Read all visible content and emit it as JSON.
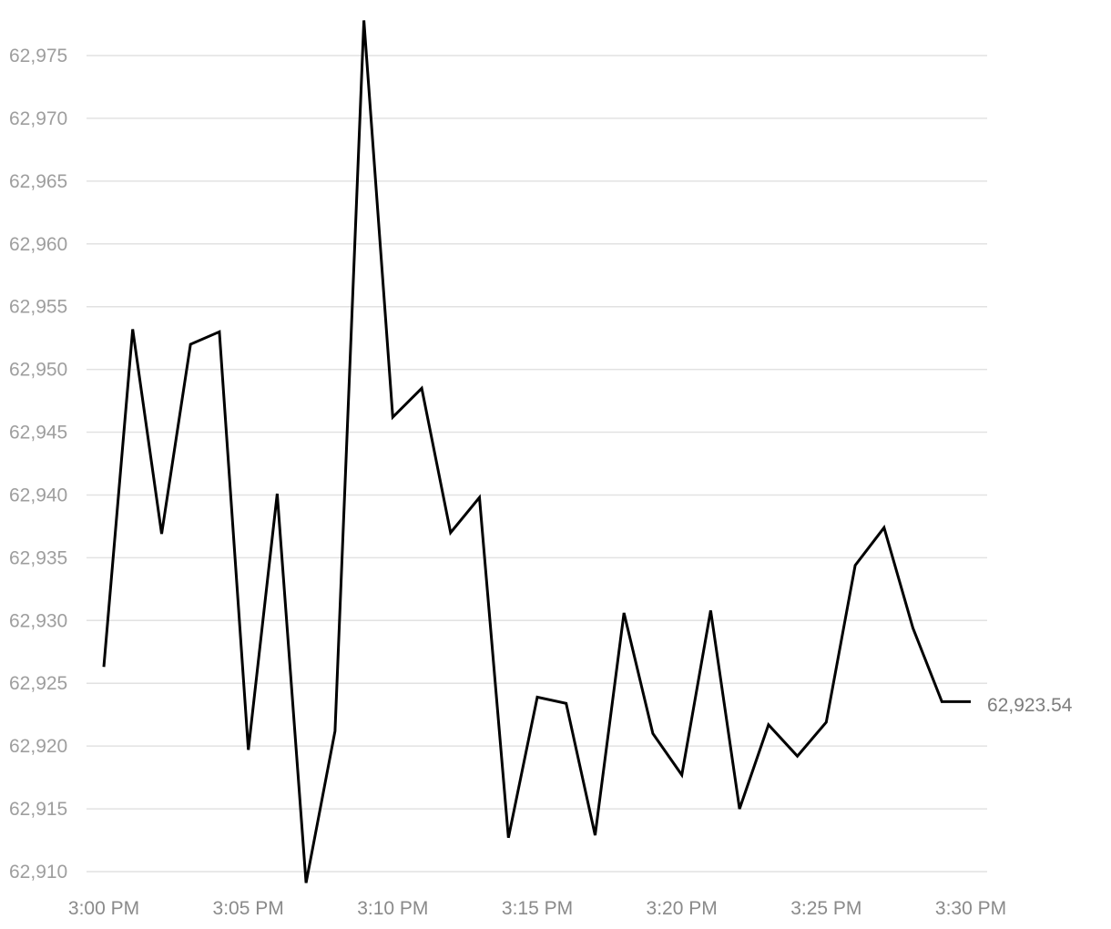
{
  "chart_data": {
    "type": "line",
    "title": "",
    "xlabel": "",
    "ylabel": "",
    "ylim": [
      62910,
      62975
    ],
    "y_ticks": [
      62975,
      62970,
      62965,
      62960,
      62955,
      62950,
      62945,
      62940,
      62935,
      62930,
      62925,
      62920,
      62915,
      62910
    ],
    "y_tick_labels": [
      "62,975",
      "62,970",
      "62,965",
      "62,960",
      "62,955",
      "62,950",
      "62,945",
      "62,940",
      "62,935",
      "62,930",
      "62,925",
      "62,920",
      "62,915",
      "62,910"
    ],
    "x_tick_labels": [
      "3:00 PM",
      "3:05 PM",
      "3:10 PM",
      "3:15 PM",
      "3:20 PM",
      "3:25 PM",
      "3:30 PM"
    ],
    "x_range_minutes": [
      0,
      30
    ],
    "grid": true,
    "line_color": "#000000",
    "series": [
      {
        "x_minutes": [
          0,
          1,
          2,
          3,
          4,
          5,
          6,
          7,
          8,
          9,
          10,
          11,
          12,
          13,
          14,
          15,
          16,
          17,
          18,
          19,
          20,
          21,
          22,
          23,
          24,
          25,
          26,
          27,
          28,
          29,
          30
        ],
        "values": [
          62926.3,
          62953.2,
          62936.9,
          62952.0,
          62953.0,
          62919.7,
          62940.1,
          62909.1,
          62921.2,
          62977.8,
          62946.2,
          62948.5,
          62937.0,
          62939.8,
          62912.7,
          62923.9,
          62923.4,
          62912.9,
          62930.6,
          62921.0,
          62917.7,
          62930.8,
          62915.0,
          62921.7,
          62919.2,
          62921.9,
          62934.4,
          62937.4,
          62929.4,
          62923.54,
          62923.54
        ]
      }
    ],
    "last_value_label": "62,923.54"
  }
}
